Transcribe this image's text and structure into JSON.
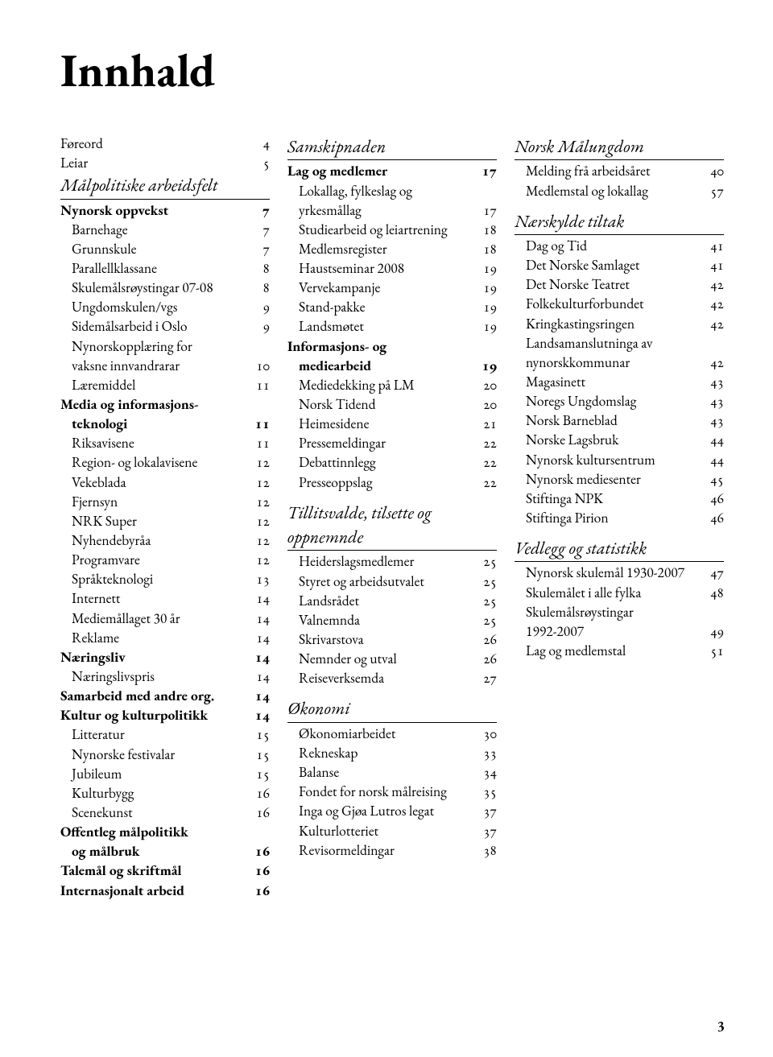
{
  "title": "Innhald",
  "footer_page": "3",
  "col1": {
    "intro": [
      {
        "label": "Føreord",
        "page": "4"
      },
      {
        "label": "Leiar",
        "page": "5"
      }
    ],
    "section": "Målpolitiske arbeidsfelt",
    "rows": [
      {
        "label": "Nynorsk oppvekst",
        "page": "7",
        "bold": true
      },
      {
        "label": "Barnehage",
        "page": "7",
        "indent": 1
      },
      {
        "label": "Grunnskule",
        "page": "7",
        "indent": 1
      },
      {
        "label": "Parallellklassane",
        "page": "8",
        "indent": 1
      },
      {
        "label": "Skulemålsrøystingar 07-08",
        "page": "8",
        "indent": 1
      },
      {
        "label": "Ungdomskulen/vgs",
        "page": "9",
        "indent": 1
      },
      {
        "label": "Sidemålsarbeid i Oslo",
        "page": "9",
        "indent": 1
      },
      {
        "label": "Nynorskopplæring for",
        "page": "",
        "indent": 1
      },
      {
        "label": "vaksne innvandrarar",
        "page": "10",
        "indent": 1,
        "cont": true
      },
      {
        "label": "Læremiddel",
        "page": "11",
        "indent": 1
      },
      {
        "label": "Media og informasjons-",
        "page": "",
        "bold": true
      },
      {
        "label": "teknologi",
        "page": "11",
        "bold": true,
        "indent": 1,
        "cont": true
      },
      {
        "label": "Riksavisene",
        "page": "11",
        "indent": 1
      },
      {
        "label": "Region- og lokalavisene",
        "page": "12",
        "indent": 1
      },
      {
        "label": "Vekeblada",
        "page": "12",
        "indent": 1
      },
      {
        "label": "Fjernsyn",
        "page": "12",
        "indent": 1
      },
      {
        "label": "NRK Super",
        "page": "12",
        "indent": 1
      },
      {
        "label": "Nyhendebyråa",
        "page": "12",
        "indent": 1
      },
      {
        "label": "Programvare",
        "page": "12",
        "indent": 1
      },
      {
        "label": "Språkteknologi",
        "page": "13",
        "indent": 1
      },
      {
        "label": "Internett",
        "page": "14",
        "indent": 1
      },
      {
        "label": "Mediemållaget 30 år",
        "page": "14",
        "indent": 1
      },
      {
        "label": "Reklame",
        "page": "14",
        "indent": 1
      },
      {
        "label": "Næringsliv",
        "page": "14",
        "bold": true
      },
      {
        "label": "Næringslivspris",
        "page": "14",
        "indent": 1
      },
      {
        "label": "Samarbeid med andre org.",
        "page": "14",
        "bold": true
      },
      {
        "label": "Kultur og kulturpolitikk",
        "page": "14",
        "bold": true
      },
      {
        "label": "Litteratur",
        "page": "15",
        "indent": 1
      },
      {
        "label": "Nynorske festivalar",
        "page": "15",
        "indent": 1
      },
      {
        "label": "Jubileum",
        "page": "15",
        "indent": 1
      },
      {
        "label": "Kulturbygg",
        "page": "16",
        "indent": 1
      },
      {
        "label": "Scenekunst",
        "page": "16",
        "indent": 1
      },
      {
        "label": "Offentleg målpolitikk",
        "page": "",
        "bold": true
      },
      {
        "label": "og målbruk",
        "page": "16",
        "bold": true,
        "indent": 1,
        "cont": true
      },
      {
        "label": "Talemål og skriftmål",
        "page": "16",
        "bold": true
      },
      {
        "label": "Internasjonalt arbeid",
        "page": "16",
        "bold": true
      }
    ]
  },
  "col2": {
    "groups": [
      {
        "section": "Samskipnaden",
        "rows": [
          {
            "label": "Lag og medlemer",
            "page": "17",
            "bold": true
          },
          {
            "label": "Lokallag, fylkeslag og",
            "page": "",
            "indent": 1
          },
          {
            "label": "yrkesmållag",
            "page": "17",
            "indent": 1,
            "cont": true
          },
          {
            "label": "Studiearbeid og leiartrening",
            "page": "18",
            "indent": 1
          },
          {
            "label": "Medlemsregister",
            "page": "18",
            "indent": 1
          },
          {
            "label": "Haustseminar 2008",
            "page": "19",
            "indent": 1
          },
          {
            "label": "Vervekampanje",
            "page": "19",
            "indent": 1
          },
          {
            "label": "Stand-pakke",
            "page": "19",
            "indent": 1
          },
          {
            "label": "Landsmøtet",
            "page": "19",
            "indent": 1
          },
          {
            "label": "Informasjons- og",
            "page": "",
            "bold": true
          },
          {
            "label": "mediearbeid",
            "page": "19",
            "bold": true,
            "indent": 1,
            "cont": true
          },
          {
            "label": "Mediedekking på LM",
            "page": "20",
            "indent": 1
          },
          {
            "label": "Norsk Tidend",
            "page": "20",
            "indent": 1
          },
          {
            "label": "Heimesidene",
            "page": "21",
            "indent": 1
          },
          {
            "label": "Pressemeldingar",
            "page": "22",
            "indent": 1
          },
          {
            "label": "Debattinnlegg",
            "page": "22",
            "indent": 1
          },
          {
            "label": "Presseoppslag",
            "page": "22",
            "indent": 1
          }
        ]
      },
      {
        "section": "Tillitsvalde, tilsette og oppnemnde",
        "rows": [
          {
            "label": "Heiderslagsmedlemer",
            "page": "25",
            "indent": 1
          },
          {
            "label": "Styret og arbeidsutvalet",
            "page": "25",
            "indent": 1
          },
          {
            "label": "Landsrådet",
            "page": "25",
            "indent": 1
          },
          {
            "label": "Valnemnda",
            "page": "25",
            "indent": 1
          },
          {
            "label": "Skrivarstova",
            "page": "26",
            "indent": 1
          },
          {
            "label": "Nemnder og utval",
            "page": "26",
            "indent": 1
          },
          {
            "label": "Reiseverksemda",
            "page": "27",
            "indent": 1
          }
        ]
      },
      {
        "section": "Økonomi",
        "rows": [
          {
            "label": "Økonomiarbeidet",
            "page": "30",
            "indent": 1
          },
          {
            "label": "Rekneskap",
            "page": "33",
            "indent": 1
          },
          {
            "label": "Balanse",
            "page": "34",
            "indent": 1
          },
          {
            "label": "Fondet for norsk målreising",
            "page": "35",
            "indent": 1
          },
          {
            "label": "Inga og Gjøa Lutros legat",
            "page": "37",
            "indent": 1
          },
          {
            "label": "Kulturlotteriet",
            "page": "37",
            "indent": 1
          },
          {
            "label": "Revisormeldingar",
            "page": "38",
            "indent": 1
          }
        ]
      }
    ]
  },
  "col3": {
    "groups": [
      {
        "section": "Norsk Målungdom",
        "rows": [
          {
            "label": "Melding frå arbeidsåret",
            "page": "40",
            "indent": 1
          },
          {
            "label": "Medlemstal og lokallag",
            "page": "57",
            "indent": 1
          }
        ]
      },
      {
        "section": "Nærskylde tiltak",
        "rows": [
          {
            "label": "Dag og Tid",
            "page": "41",
            "indent": 1
          },
          {
            "label": "Det Norske Samlaget",
            "page": "41",
            "indent": 1
          },
          {
            "label": "Det Norske Teatret",
            "page": "42",
            "indent": 1
          },
          {
            "label": "Folkekulturforbundet",
            "page": "42",
            "indent": 1
          },
          {
            "label": "Kringkastingsringen",
            "page": "42",
            "indent": 1
          },
          {
            "label": "Landsamanslutninga av",
            "page": "",
            "indent": 1
          },
          {
            "label": "nynorskkommunar",
            "page": "42",
            "indent": 1,
            "cont": true
          },
          {
            "label": "Magasinett",
            "page": "43",
            "indent": 1
          },
          {
            "label": "Noregs Ungdomslag",
            "page": "43",
            "indent": 1
          },
          {
            "label": "Norsk Barneblad",
            "page": "43",
            "indent": 1
          },
          {
            "label": "Norske Lagsbruk",
            "page": "44",
            "indent": 1
          },
          {
            "label": "Nynorsk kultursentrum",
            "page": "44",
            "indent": 1
          },
          {
            "label": "Nynorsk mediesenter",
            "page": "45",
            "indent": 1
          },
          {
            "label": "Stiftinga NPK",
            "page": "46",
            "indent": 1
          },
          {
            "label": "Stiftinga Pirion",
            "page": "46",
            "indent": 1
          }
        ]
      },
      {
        "section": "Vedlegg og statistikk",
        "rows": [
          {
            "label": "Nynorsk skulemål 1930-2007",
            "page": "47",
            "indent": 1
          },
          {
            "label": "Skulemålet i alle fylka",
            "page": "48",
            "indent": 1
          },
          {
            "label": "Skulemålsrøystingar",
            "page": "",
            "indent": 1
          },
          {
            "label": "1992-2007",
            "page": "49",
            "indent": 1,
            "cont": true
          },
          {
            "label": "Lag og medlemstal",
            "page": "51",
            "indent": 1
          }
        ]
      }
    ]
  }
}
